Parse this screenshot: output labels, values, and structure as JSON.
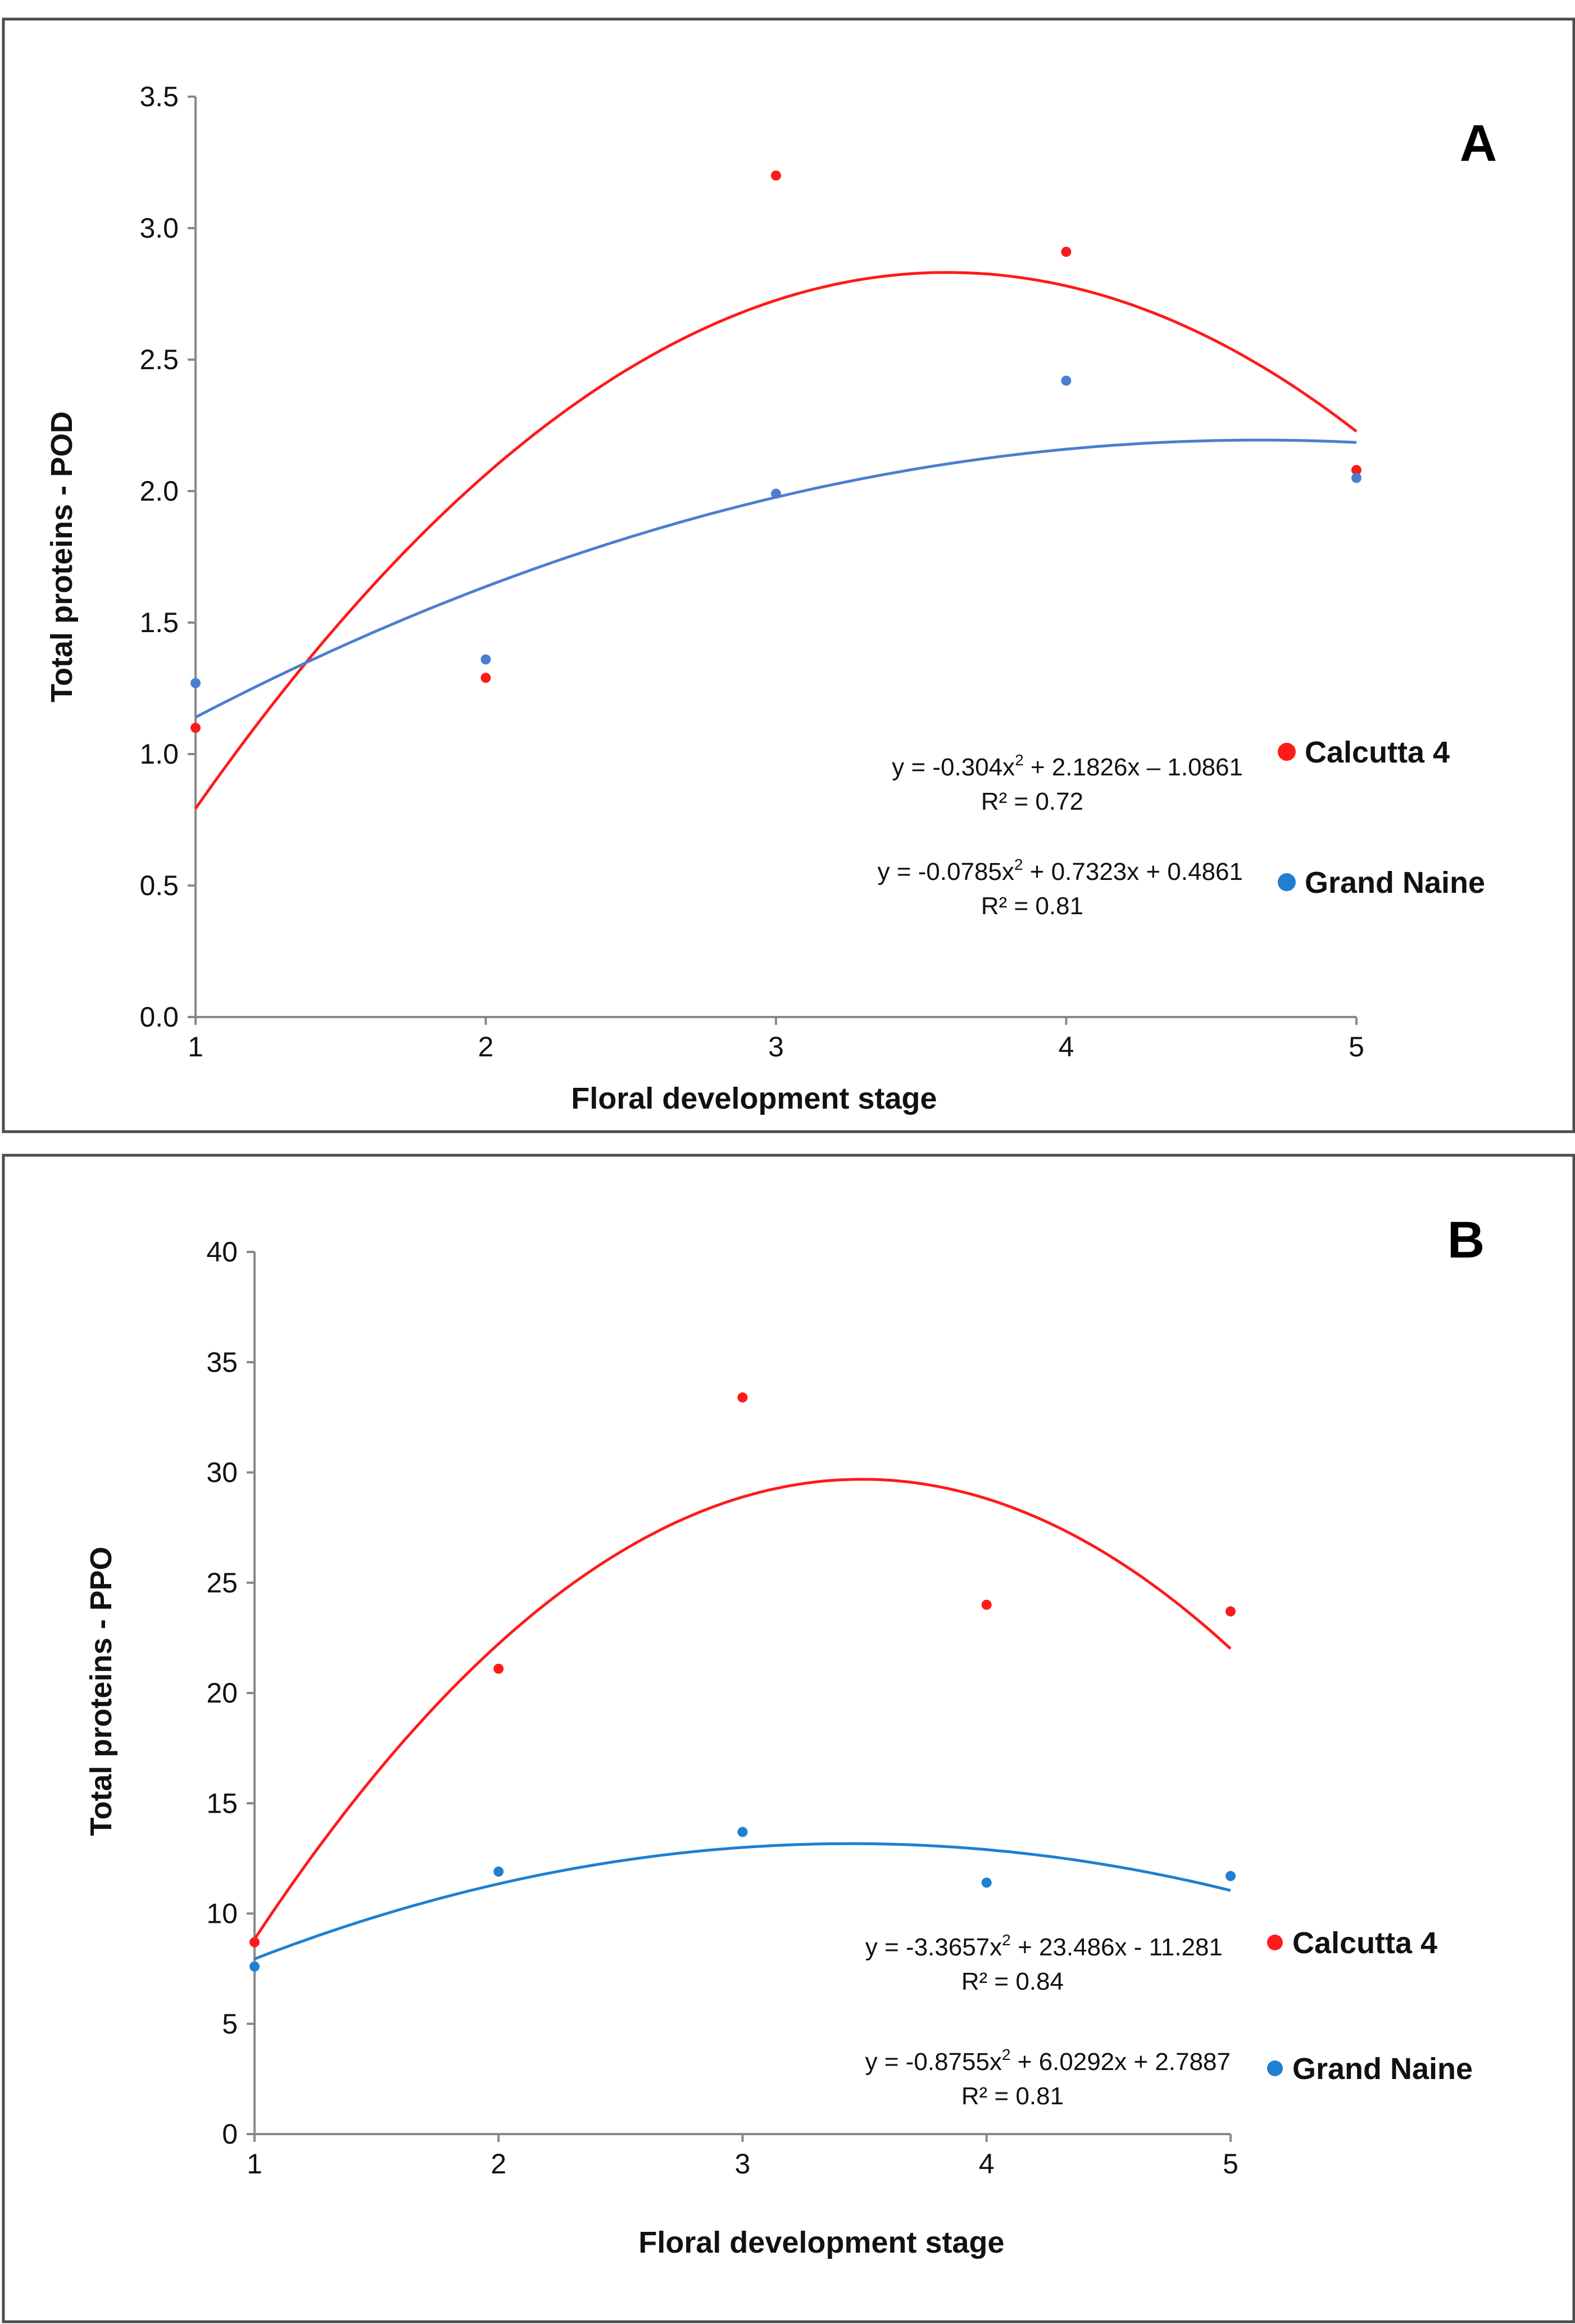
{
  "figure": {
    "panels": [
      {
        "panel_label": "A",
        "equations": [
          {
            "formula_pre": "y = -0.304x",
            "formula_post": " + 2.1826x – 1.0861",
            "r2": "R² = 0.72"
          },
          {
            "formula_pre": "y = -0.0785x",
            "formula_post": " + 0.7323x + 0.4861",
            "r2": "R² = 0.81"
          }
        ]
      },
      {
        "panel_label": "B",
        "equations": [
          {
            "formula_pre": "y = -3.3657x",
            "formula_post": " + 23.486x - 11.281",
            "r2": "R² = 0.84"
          },
          {
            "formula_pre": "y = -0.8755x",
            "formula_post": " + 6.0292x + 2.7887",
            "r2": "R² = 0.81"
          }
        ]
      }
    ]
  },
  "chart_data": [
    {
      "type": "scatter",
      "title": "A",
      "xlabel": "Floral development stage",
      "ylabel": "Total proteins - POD",
      "x": [
        1,
        2,
        3,
        4,
        5
      ],
      "xticks": [
        "1",
        "2",
        "3",
        "4",
        "5"
      ],
      "yticks": [
        "0.0",
        "0.5",
        "1.0",
        "1.5",
        "2.0",
        "2.5",
        "3.0",
        "3.5"
      ],
      "xlim": [
        1,
        5
      ],
      "ylim": [
        0,
        3.5
      ],
      "grid": false,
      "legend_position": "right",
      "series": [
        {
          "name": "Calcutta 4",
          "color": "#ff1a1a",
          "values": [
            1.1,
            1.29,
            3.2,
            2.91,
            2.08
          ],
          "trendline": {
            "type": "polynomial",
            "a": -0.304,
            "b": 2.1826,
            "c": -1.0861,
            "r2": 0.72
          }
        },
        {
          "name": "Grand Naine",
          "color": "#4a7fd0",
          "values": [
            1.27,
            1.36,
            1.99,
            2.42,
            2.05
          ],
          "trendline": {
            "type": "polynomial",
            "a": -0.0785,
            "b": 0.7323,
            "c": 0.4861,
            "r2": 0.81
          }
        }
      ]
    },
    {
      "type": "scatter",
      "title": "B",
      "xlabel": "Floral development stage",
      "ylabel": "Total proteins - PPO",
      "x": [
        1,
        2,
        3,
        4,
        5
      ],
      "xticks": [
        "1",
        "2",
        "3",
        "4",
        "5"
      ],
      "yticks": [
        "0",
        "5",
        "10",
        "15",
        "20",
        "25",
        "30",
        "35",
        "40"
      ],
      "xlim": [
        1,
        5
      ],
      "ylim": [
        0,
        40
      ],
      "grid": false,
      "legend_position": "right",
      "series": [
        {
          "name": "Calcutta 4",
          "color": "#ff1a1a",
          "values": [
            8.7,
            21.1,
            33.4,
            24.0,
            23.7
          ],
          "trendline": {
            "type": "polynomial",
            "a": -3.3657,
            "b": 23.486,
            "c": -11.281,
            "r2": 0.84
          }
        },
        {
          "name": "Grand Naine",
          "color": "#1f7fd0",
          "values": [
            7.6,
            11.9,
            13.7,
            11.4,
            11.7
          ],
          "trendline": {
            "type": "polynomial",
            "a": -0.8755,
            "b": 6.0292,
            "c": 2.7887,
            "r2": 0.81
          }
        }
      ]
    }
  ]
}
